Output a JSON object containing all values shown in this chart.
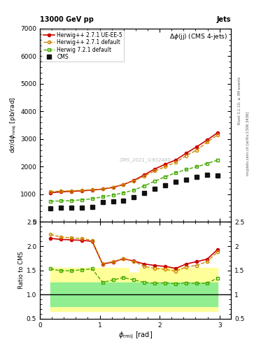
{
  "title_top": "13000 GeV pp",
  "title_right": "Jets",
  "plot_title": "Δϕ(jj) (CMS 4-jets)",
  "xlabel": "ϕ_{ᵣᵥ ij} [rad]",
  "ylabel_main": "dσ/dϕₙₘij [pb/rad]",
  "ylabel_ratio": "Ratio to CMS",
  "watermark": "CMS_2021_I1932460",
  "rivet_label": "Rivet 3.1.10, ≥ 3M events",
  "arxiv_label": "mcplots.cern.ch [arXiv:1306.3436]",
  "cms_x": [
    0.175,
    0.349,
    0.524,
    0.698,
    0.873,
    1.047,
    1.222,
    1.396,
    1.571,
    1.745,
    1.92,
    2.094,
    2.269,
    2.443,
    2.618,
    2.793,
    2.967
  ],
  "cms_y": [
    490,
    510,
    520,
    530,
    550,
    730,
    750,
    780,
    890,
    1050,
    1200,
    1320,
    1460,
    1530,
    1620,
    1720,
    1670
  ],
  "herwig271_default_x": [
    0.175,
    0.349,
    0.524,
    0.698,
    0.873,
    1.047,
    1.222,
    1.396,
    1.571,
    1.745,
    1.92,
    2.094,
    2.269,
    2.443,
    2.618,
    2.793,
    2.967
  ],
  "herwig271_default_y": [
    1100,
    1115,
    1130,
    1145,
    1165,
    1195,
    1260,
    1355,
    1490,
    1660,
    1850,
    2000,
    2160,
    2400,
    2600,
    2890,
    3150
  ],
  "herwig271_ueee5_x": [
    0.175,
    0.349,
    0.524,
    0.698,
    0.873,
    1.047,
    1.222,
    1.396,
    1.571,
    1.745,
    1.92,
    2.094,
    2.269,
    2.443,
    2.618,
    2.793,
    2.967
  ],
  "herwig271_ueee5_y": [
    1060,
    1090,
    1110,
    1125,
    1155,
    1190,
    1255,
    1355,
    1505,
    1710,
    1920,
    2090,
    2245,
    2490,
    2720,
    2970,
    3230
  ],
  "herwig721_default_x": [
    0.175,
    0.349,
    0.524,
    0.698,
    0.873,
    1.047,
    1.222,
    1.396,
    1.571,
    1.745,
    1.92,
    2.094,
    2.269,
    2.443,
    2.618,
    2.793,
    2.967
  ],
  "herwig721_default_y": [
    750,
    760,
    775,
    800,
    840,
    910,
    975,
    1055,
    1155,
    1310,
    1480,
    1640,
    1780,
    1900,
    2000,
    2115,
    2240
  ],
  "ratio_herwig271_default": [
    2.24,
    2.19,
    2.17,
    2.16,
    2.12,
    1.64,
    1.68,
    1.74,
    1.68,
    1.58,
    1.54,
    1.52,
    1.48,
    1.57,
    1.6,
    1.68,
    1.88
  ],
  "ratio_herwig271_ueee5": [
    2.16,
    2.14,
    2.13,
    2.12,
    2.1,
    1.63,
    1.67,
    1.74,
    1.69,
    1.63,
    1.6,
    1.58,
    1.54,
    1.63,
    1.68,
    1.73,
    1.93
  ],
  "ratio_herwig721_default": [
    1.53,
    1.49,
    1.49,
    1.51,
    1.53,
    1.25,
    1.3,
    1.35,
    1.3,
    1.25,
    1.23,
    1.24,
    1.22,
    1.24,
    1.23,
    1.23,
    1.34
  ],
  "green_band_upper_vals": [
    1.25,
    1.25,
    1.25,
    1.25,
    1.25,
    1.25,
    1.25,
    1.25,
    1.25,
    1.25,
    1.25,
    1.25,
    1.25,
    1.25,
    1.25,
    1.25,
    1.25
  ],
  "green_band_lower_vals": [
    0.75,
    0.75,
    0.75,
    0.75,
    0.75,
    0.75,
    0.75,
    0.75,
    0.75,
    0.75,
    0.75,
    0.75,
    0.75,
    0.75,
    0.75,
    0.75,
    0.75
  ],
  "yellow_band_upper_vals": [
    1.55,
    1.55,
    1.55,
    1.55,
    1.55,
    1.55,
    1.55,
    1.55,
    1.45,
    1.55,
    1.55,
    1.55,
    1.55,
    1.55,
    1.55,
    1.55,
    1.55
  ],
  "yellow_band_lower_vals": [
    0.65,
    0.65,
    0.65,
    0.65,
    0.65,
    0.65,
    0.65,
    0.65,
    0.65,
    0.65,
    0.65,
    0.65,
    0.65,
    0.65,
    0.65,
    0.65,
    0.65
  ],
  "ylim_main": [
    0,
    7000
  ],
  "ylim_ratio": [
    0.5,
    2.5
  ],
  "yticks_main": [
    0,
    1000,
    2000,
    3000,
    4000,
    5000,
    6000,
    7000
  ],
  "yticks_ratio": [
    0.5,
    1.0,
    1.5,
    2.0,
    2.5
  ],
  "color_cms": "#111111",
  "color_herwig271_default": "#cc8800",
  "color_herwig271_ueee5": "#cc0000",
  "color_herwig721_default": "#44aa00",
  "color_green_band": "#90ee90",
  "color_yellow_band": "#ffff99",
  "bg_color": "#ffffff"
}
